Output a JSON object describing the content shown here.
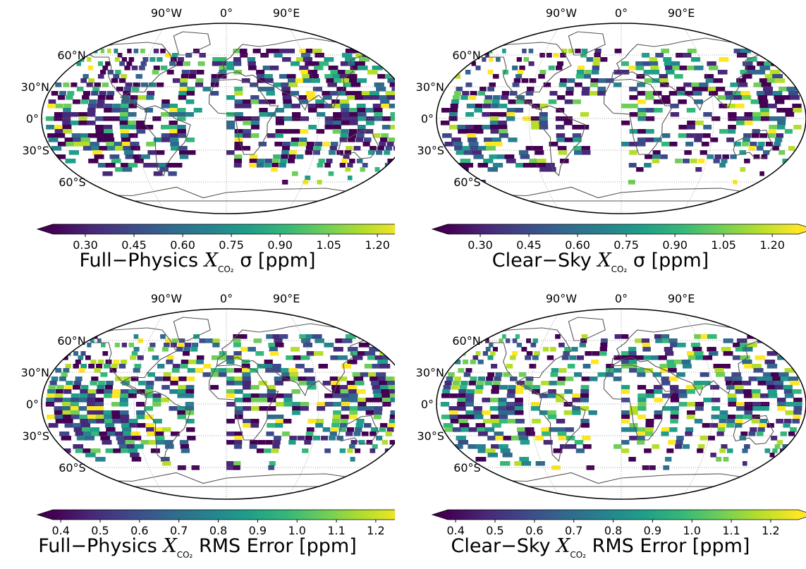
{
  "colors": {
    "viridis": [
      "#440154",
      "#482878",
      "#3e4989",
      "#31688e",
      "#26828e",
      "#1f9e89",
      "#35b779",
      "#6ece58",
      "#b5de2b",
      "#fde725"
    ],
    "gridline": "#888888",
    "coast": "#555555",
    "frame": "#000000"
  },
  "map": {
    "projection": "robinson",
    "lon_labels": [
      "90°W",
      "0°",
      "90°E"
    ],
    "lat_labels": [
      "60°N",
      "30°N",
      "0°",
      "30°S",
      "60°S"
    ]
  },
  "panels": [
    {
      "id": "fp-sigma",
      "title_prefix": "Full−Physics",
      "variable": "X",
      "subscript": "CO₂",
      "title_suffix": "σ [ppm]",
      "colorbar_ticks": [
        "0.30",
        "0.45",
        "0.60",
        "0.75",
        "0.90",
        "1.05",
        "1.20"
      ],
      "colorbar_range": [
        0.2,
        1.28
      ],
      "extend": "both"
    },
    {
      "id": "cs-sigma",
      "title_prefix": "Clear−Sky",
      "variable": "X",
      "subscript": "CO₂",
      "title_suffix": "σ [ppm]",
      "colorbar_ticks": [
        "0.30",
        "0.45",
        "0.60",
        "0.75",
        "0.90",
        "1.05",
        "1.20"
      ],
      "colorbar_range": [
        0.2,
        1.28
      ],
      "extend": "both"
    },
    {
      "id": "fp-rms",
      "title_prefix": "Full−Physics",
      "variable": "X",
      "subscript": "CO₂",
      "title_suffix": "RMS Error [ppm]",
      "colorbar_ticks": [
        "0.4",
        "0.5",
        "0.6",
        "0.7",
        "0.8",
        "0.9",
        "1.0",
        "1.1",
        "1.2"
      ],
      "colorbar_range": [
        0.38,
        1.27
      ],
      "extend": "both"
    },
    {
      "id": "cs-rms",
      "title_prefix": "Clear−Sky",
      "variable": "X",
      "subscript": "CO₂",
      "title_suffix": "RMS Error [ppm]",
      "colorbar_ticks": [
        "0.4",
        "0.5",
        "0.6",
        "0.7",
        "0.8",
        "0.9",
        "1.0",
        "1.1",
        "1.2"
      ],
      "colorbar_range": [
        0.38,
        1.27
      ],
      "extend": "both"
    }
  ]
}
